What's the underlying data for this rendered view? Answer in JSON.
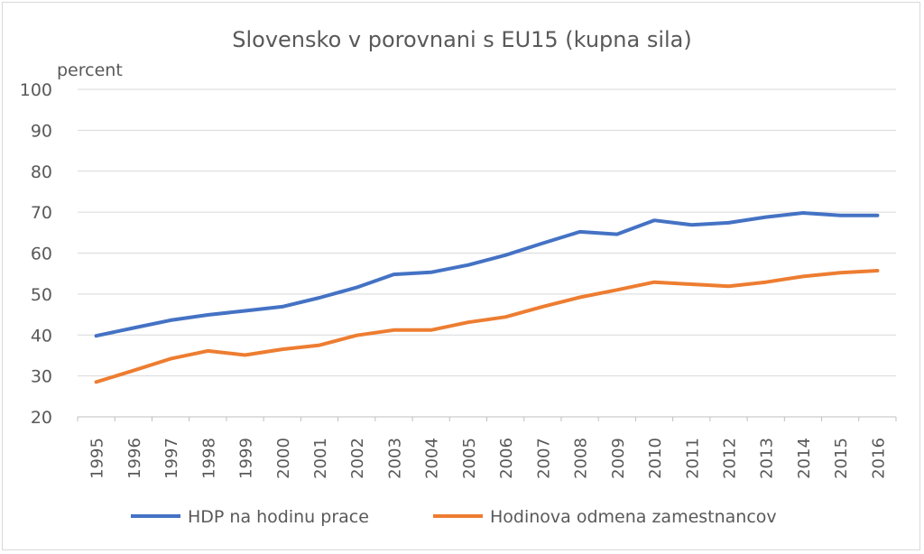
{
  "chart_data": {
    "type": "line",
    "title": "Slovensko v porovnani s EU15 (kupna sila)",
    "ylabel": "percent",
    "xlabel": "",
    "ylim": [
      20,
      100
    ],
    "yticks": [
      20,
      30,
      40,
      50,
      60,
      70,
      80,
      90,
      100
    ],
    "grid": true,
    "legend_position": "bottom",
    "categories": [
      "1995",
      "1996",
      "1997",
      "1998",
      "1999",
      "2000",
      "2001",
      "2002",
      "2003",
      "2004",
      "2005",
      "2006",
      "2007",
      "2008",
      "2009",
      "2010",
      "2011",
      "2012",
      "2013",
      "2014",
      "2015",
      "2016"
    ],
    "series": [
      {
        "name": "HDP na hodinu prace",
        "color": "#4472c4",
        "values": [
          39.8,
          41.7,
          43.6,
          44.9,
          45.9,
          46.9,
          49.1,
          51.6,
          54.8,
          55.3,
          57.1,
          59.5,
          62.4,
          65.2,
          64.6,
          68.0,
          66.9,
          67.4,
          68.8,
          69.8,
          69.2,
          69.2
        ]
      },
      {
        "name": "Hodinova odmena zamestnancov",
        "color": "#ed7d31",
        "values": [
          28.5,
          31.3,
          34.2,
          36.1,
          35.1,
          36.5,
          37.5,
          39.9,
          41.2,
          41.2,
          43.1,
          44.4,
          46.9,
          49.2,
          51.0,
          52.9,
          52.4,
          51.9,
          52.9,
          54.3,
          55.2,
          55.7
        ]
      }
    ]
  }
}
